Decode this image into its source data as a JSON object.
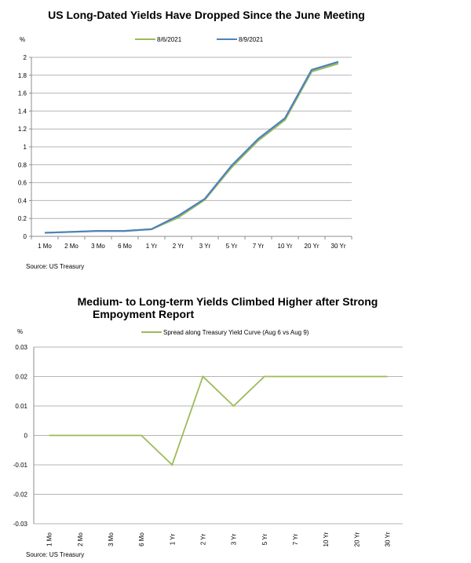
{
  "chart_data": [
    {
      "type": "line",
      "title": "US Long-Dated Yields Have Dropped Since the June Meeting",
      "ylabel": "%",
      "xlabel": "",
      "ylim": [
        0,
        2
      ],
      "yticks": [
        "0",
        "0.2",
        "0.4",
        "0.6",
        "0.8",
        "1",
        "1.2",
        "1.4",
        "1.6",
        "1.8",
        "2"
      ],
      "ytick_values": [
        0,
        0.2,
        0.4,
        0.6,
        0.8,
        1,
        1.2,
        1.4,
        1.6,
        1.8,
        2
      ],
      "categories": [
        "1 Mo",
        "2 Mo",
        "3 Mo",
        "6 Mo",
        "1 Yr",
        "2 Yr",
        "3 Yr",
        "5 Yr",
        "7 Yr",
        "10 Yr",
        "20 Yr",
        "30 Yr"
      ],
      "series": [
        {
          "name": "8/6/2021",
          "color": "#9bbb59",
          "values": [
            0.04,
            0.05,
            0.06,
            0.06,
            0.08,
            0.21,
            0.41,
            0.77,
            1.07,
            1.3,
            1.84,
            1.93
          ]
        },
        {
          "name": "8/9/2021",
          "color": "#4f81bd",
          "values": [
            0.04,
            0.05,
            0.06,
            0.06,
            0.08,
            0.23,
            0.42,
            0.79,
            1.09,
            1.32,
            1.86,
            1.95
          ]
        }
      ],
      "grid": true,
      "legend": "top",
      "source": "Source: US Treasury"
    },
    {
      "type": "line",
      "title_lines": [
        "Medium- to Long-term Yields Climbed Higher after Strong",
        "Empoyment Report"
      ],
      "ylabel": "%",
      "xlabel": "",
      "ylim": [
        -0.03,
        0.03
      ],
      "yticks": [
        "0.03",
        "0.02",
        "0.01",
        "0",
        "-0.01",
        "-0.02",
        "-0.03"
      ],
      "ytick_values": [
        0.03,
        0.02,
        0.01,
        0,
        -0.01,
        -0.02,
        -0.03
      ],
      "categories": [
        "1 Mo",
        "2 Mo",
        "3 Mo",
        "6 Mo",
        "1 Yr",
        "2 Yr",
        "3 Yr",
        "5 Yr",
        "7 Yr",
        "10 Yr",
        "20 Yr",
        "30 Yr"
      ],
      "series": [
        {
          "name": "Spread along Treasury Yield Curve (Aug 6 vs Aug 9)",
          "color": "#9bbb59",
          "values": [
            0,
            0,
            0,
            0,
            -0.01,
            0.02,
            0.01,
            0.02,
            0.02,
            0.02,
            0.02,
            0.02
          ]
        }
      ],
      "grid": true,
      "legend": "top",
      "source": "Source: US Treasury"
    }
  ]
}
